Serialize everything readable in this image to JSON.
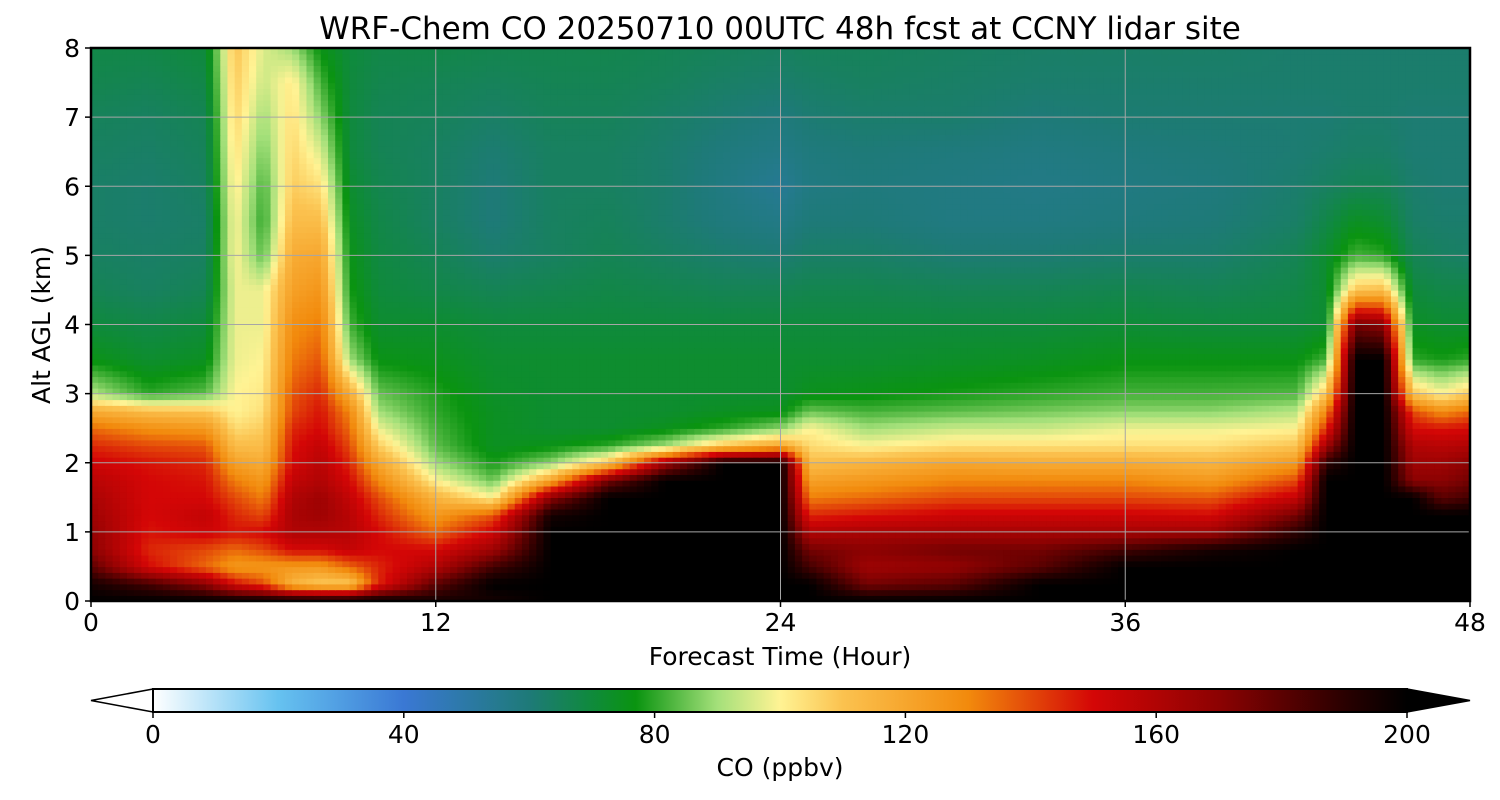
{
  "chart_data": {
    "type": "heatmap",
    "title": "WRF-Chem CO  20250710 00UTC 48h fcst at CCNY lidar site",
    "xlabel": "Forecast Time (Hour)",
    "ylabel": "Alt AGL (km)",
    "xlim": [
      0,
      48
    ],
    "ylim": [
      0,
      8
    ],
    "xticks": [
      "0",
      "12",
      "24",
      "36",
      "48"
    ],
    "yticks": [
      "0",
      "1",
      "2",
      "3",
      "4",
      "5",
      "6",
      "7",
      "8"
    ],
    "grid": true,
    "colorbar": {
      "label": "CO  (ppbv)",
      "range": [
        0,
        200
      ],
      "ticks": [
        "0",
        "40",
        "80",
        "120",
        "160",
        "200"
      ],
      "extend": "both",
      "stops": [
        {
          "v": 0,
          "c": "#ffffff"
        },
        {
          "v": 20,
          "c": "#66c2f0"
        },
        {
          "v": 40,
          "c": "#3a78d4"
        },
        {
          "v": 60,
          "c": "#1e7a78"
        },
        {
          "v": 70,
          "c": "#0f8a3c"
        },
        {
          "v": 77,
          "c": "#0a9410"
        },
        {
          "v": 90,
          "c": "#a4e07a"
        },
        {
          "v": 100,
          "c": "#fff394"
        },
        {
          "v": 110,
          "c": "#fbc24f"
        },
        {
          "v": 130,
          "c": "#f28a0c"
        },
        {
          "v": 150,
          "c": "#d40606"
        },
        {
          "v": 170,
          "c": "#8c0202"
        },
        {
          "v": 190,
          "c": "#2a0000"
        },
        {
          "v": 200,
          "c": "#000000"
        }
      ]
    },
    "x_hours": [
      0,
      2,
      4,
      5,
      6,
      7,
      8,
      9,
      10,
      12,
      14,
      16,
      18,
      20,
      22,
      24,
      25,
      27,
      30,
      33,
      36,
      39,
      42,
      43,
      44,
      45,
      46,
      47,
      48
    ],
    "y_km": [
      0,
      0.25,
      0.5,
      0.75,
      1,
      1.25,
      1.5,
      1.75,
      2,
      2.25,
      2.5,
      2.75,
      3,
      3.5,
      4,
      4.5,
      5,
      5.5,
      6,
      6.5,
      7,
      7.5,
      8
    ],
    "co_ppbv": [
      [
        200,
        200,
        200,
        200,
        200,
        200,
        200,
        200,
        200,
        195,
        195,
        200,
        200,
        200,
        200,
        200,
        200,
        200,
        200,
        200,
        200,
        200,
        200,
        200,
        200,
        200,
        200,
        200,
        200
      ],
      [
        195,
        185,
        170,
        150,
        140,
        115,
        108,
        108,
        145,
        180,
        200,
        200,
        200,
        200,
        200,
        200,
        200,
        175,
        180,
        200,
        200,
        200,
        200,
        200,
        200,
        200,
        200,
        200,
        200
      ],
      [
        180,
        150,
        135,
        125,
        125,
        125,
        125,
        135,
        145,
        160,
        185,
        200,
        200,
        200,
        200,
        200,
        185,
        165,
        168,
        180,
        200,
        200,
        200,
        200,
        200,
        200,
        200,
        200,
        200
      ],
      [
        170,
        145,
        140,
        135,
        140,
        150,
        150,
        155,
        150,
        150,
        165,
        200,
        200,
        200,
        200,
        200,
        175,
        170,
        175,
        175,
        185,
        195,
        200,
        200,
        200,
        200,
        200,
        200,
        200
      ],
      [
        168,
        148,
        152,
        148,
        150,
        160,
        160,
        158,
        150,
        135,
        152,
        200,
        200,
        200,
        200,
        200,
        160,
        162,
        163,
        163,
        163,
        165,
        190,
        200,
        200,
        200,
        200,
        200,
        200
      ],
      [
        165,
        150,
        155,
        145,
        140,
        162,
        165,
        158,
        145,
        125,
        138,
        195,
        200,
        200,
        200,
        200,
        145,
        148,
        152,
        152,
        152,
        150,
        175,
        200,
        200,
        200,
        200,
        200,
        200
      ],
      [
        162,
        150,
        150,
        140,
        132,
        160,
        165,
        155,
        140,
        115,
        100,
        170,
        200,
        200,
        200,
        200,
        132,
        135,
        140,
        140,
        140,
        138,
        155,
        200,
        200,
        200,
        200,
        180,
        185
      ],
      [
        158,
        150,
        148,
        132,
        125,
        155,
        160,
        150,
        130,
        100,
        85,
        120,
        175,
        200,
        200,
        200,
        122,
        125,
        130,
        130,
        130,
        125,
        140,
        200,
        200,
        200,
        170,
        170,
        175
      ],
      [
        152,
        148,
        145,
        122,
        118,
        150,
        158,
        145,
        120,
        90,
        78,
        88,
        110,
        165,
        200,
        200,
        112,
        115,
        120,
        118,
        118,
        115,
        125,
        190,
        200,
        200,
        165,
        165,
        170
      ],
      [
        145,
        140,
        138,
        112,
        112,
        148,
        155,
        140,
        108,
        84,
        74,
        76,
        80,
        90,
        110,
        120,
        105,
        100,
        104,
        104,
        104,
        104,
        110,
        165,
        200,
        200,
        160,
        158,
        160
      ],
      [
        135,
        128,
        125,
        105,
        108,
        145,
        150,
        135,
        98,
        82,
        74,
        72,
        72,
        75,
        80,
        88,
        100,
        90,
        94,
        94,
        98,
        98,
        100,
        145,
        200,
        200,
        150,
        148,
        150
      ],
      [
        118,
        112,
        110,
        100,
        104,
        140,
        148,
        130,
        90,
        80,
        74,
        72,
        72,
        72,
        74,
        75,
        85,
        82,
        84,
        86,
        88,
        88,
        92,
        130,
        200,
        200,
        140,
        128,
        135
      ],
      [
        92,
        80,
        84,
        100,
        102,
        138,
        145,
        118,
        85,
        79,
        73,
        72,
        72,
        72,
        72,
        72,
        75,
        76,
        78,
        80,
        82,
        82,
        83,
        110,
        200,
        200,
        110,
        100,
        108
      ],
      [
        76,
        72,
        74,
        98,
        100,
        132,
        138,
        90,
        76,
        75,
        72,
        72,
        72,
        72,
        72,
        72,
        72,
        72,
        73,
        74,
        76,
        76,
        76,
        82,
        200,
        200,
        80,
        78,
        80
      ],
      [
        70,
        68,
        70,
        98,
        98,
        128,
        132,
        82,
        72,
        72,
        70,
        70,
        70,
        70,
        70,
        70,
        70,
        70,
        70,
        70,
        71,
        70,
        70,
        72,
        175,
        170,
        74,
        72,
        72
      ],
      [
        66,
        64,
        66,
        98,
        98,
        122,
        126,
        78,
        70,
        68,
        66,
        67,
        68,
        67,
        66,
        66,
        67,
        67,
        66,
        66,
        67,
        66,
        68,
        72,
        110,
        112,
        70,
        68,
        68
      ],
      [
        64,
        63,
        64,
        100,
        84,
        118,
        120,
        76,
        69,
        66,
        62,
        64,
        66,
        64,
        62,
        61,
        63,
        63,
        61,
        61,
        62,
        62,
        66,
        72,
        82,
        80,
        66,
        64,
        63
      ],
      [
        63,
        62,
        63,
        100,
        80,
        112,
        112,
        74,
        68,
        64,
        60,
        64,
        65,
        62,
        59,
        57,
        60,
        60,
        58,
        58,
        59,
        60,
        63,
        68,
        74,
        72,
        63,
        62,
        62
      ],
      [
        63,
        62,
        64,
        102,
        82,
        108,
        104,
        72,
        67,
        64,
        60,
        64,
        64,
        62,
        58,
        54,
        58,
        59,
        58,
        57,
        58,
        59,
        62,
        64,
        66,
        66,
        62,
        61,
        61
      ],
      [
        64,
        63,
        65,
        104,
        86,
        106,
        96,
        70,
        66,
        64,
        61,
        64,
        64,
        62,
        59,
        57,
        59,
        60,
        59,
        58,
        59,
        60,
        61,
        62,
        63,
        63,
        61,
        61,
        61
      ],
      [
        65,
        64,
        66,
        106,
        90,
        104,
        88,
        70,
        66,
        65,
        63,
        65,
        65,
        63,
        61,
        59,
        61,
        62,
        62,
        60,
        61,
        61,
        61,
        61,
        62,
        62,
        61,
        61,
        61
      ],
      [
        67,
        66,
        68,
        108,
        94,
        102,
        82,
        70,
        67,
        66,
        65,
        66,
        66,
        65,
        63,
        62,
        63,
        64,
        63,
        62,
        62,
        62,
        62,
        62,
        62,
        62,
        62,
        62,
        62
      ],
      [
        68,
        68,
        70,
        110,
        96,
        90,
        76,
        70,
        68,
        68,
        67,
        67,
        67,
        66,
        65,
        64,
        65,
        65,
        64,
        63,
        63,
        63,
        62,
        62,
        62,
        62,
        62,
        62,
        62
      ]
    ]
  }
}
